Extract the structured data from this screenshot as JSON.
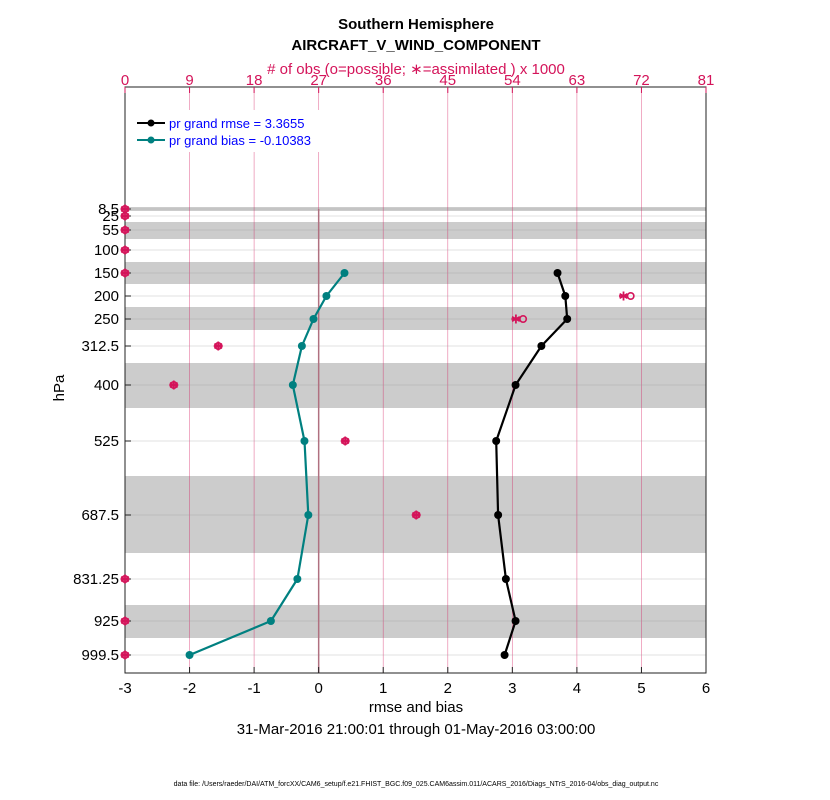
{
  "chart_data": {
    "type": "line",
    "title": "Southern Hemisphere",
    "subtitle": "AIRCRAFT_V_WIND_COMPONENT",
    "top_axis_label": "# of obs (o=possible; ∗=assimilated ) x 1000",
    "top_ticks": [
      "0",
      "9",
      "18",
      "27",
      "36",
      "45",
      "54",
      "63",
      "72",
      "81"
    ],
    "top_range": [
      0,
      81
    ],
    "xlabel": "rmse and bias",
    "x_ticks": [
      "-3",
      "-2",
      "-1",
      "0",
      "1",
      "2",
      "3",
      "4",
      "5",
      "6"
    ],
    "xlim": [
      -3,
      6
    ],
    "ylabel": "hPa",
    "date_range": "31-Mar-2016 21:00:01 through 01-May-2016 03:00:00",
    "footer": "data file: /Users/raeder/DAI/ATM_forcXX/CAM6_setup/f.e21.FHIST_BGC.f09_025.CAM6assim.011/ACARS_2016/Diags_NTrS_2016-04/obs_diag_output.nc",
    "levels": [
      "8.5",
      "25",
      "55",
      "100",
      "150",
      "200",
      "250",
      "312.5",
      "400",
      "525",
      "687.5",
      "831.25",
      "925",
      "999.5"
    ],
    "level_values": [
      8.5,
      25,
      55,
      100,
      150,
      200,
      250,
      312.5,
      400,
      525,
      687.5,
      831.25,
      925,
      999.5
    ],
    "series": [
      {
        "name": "pr grand rmse = 3.3655",
        "legend": "pr grand rmse = 3.3655",
        "color": "#000000",
        "levels": [
          150,
          200,
          250,
          312.5,
          400,
          525,
          687.5,
          831.25,
          925,
          999.5
        ],
        "values": [
          3.7,
          3.82,
          3.85,
          3.45,
          3.05,
          2.75,
          2.78,
          2.9,
          3.05,
          2.88
        ]
      },
      {
        "name": "pr grand bias = -0.10383",
        "legend": "pr grand bias = -0.10383",
        "color": "#008080",
        "levels": [
          150,
          200,
          250,
          312.5,
          400,
          525,
          687.5,
          831.25,
          925,
          999.5
        ],
        "values": [
          0.4,
          0.12,
          -0.08,
          -0.26,
          -0.4,
          -0.22,
          -0.16,
          -0.33,
          -0.74,
          -2.0
        ]
      }
    ],
    "obs_counts": {
      "color": "#d4145a",
      "unit": "x 1000",
      "levels": [
        8.5,
        25,
        55,
        100,
        150,
        200,
        250,
        312.5,
        400,
        525,
        687.5,
        831.25,
        925,
        999.5
      ],
      "possible": [
        0,
        0,
        0,
        0,
        0,
        70.5,
        55.5,
        13,
        6.8,
        30.7,
        40.6,
        0,
        0,
        0
      ],
      "assimilated": [
        0,
        0,
        0,
        0,
        0,
        69.5,
        54.5,
        13,
        6.8,
        30.7,
        40.6,
        0,
        0,
        0
      ]
    }
  }
}
